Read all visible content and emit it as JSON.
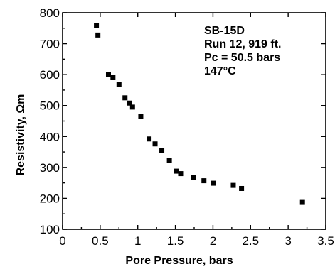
{
  "chart_data": {
    "type": "scatter",
    "xlabel": "Pore Pressure, bars",
    "ylabel": "Resistivity, Ωm",
    "xlim": [
      0,
      3.5
    ],
    "ylim": [
      100,
      800
    ],
    "xticks": [
      0,
      0.5,
      1,
      1.5,
      2,
      2.5,
      3,
      3.5
    ],
    "yticks": [
      100,
      200,
      300,
      400,
      500,
      600,
      700,
      800
    ],
    "xtick_labels": [
      "0",
      "0.5",
      "1",
      "1.5",
      "2",
      "2.5",
      "3",
      "3.5"
    ],
    "ytick_labels": [
      "100",
      "200",
      "300",
      "400",
      "500",
      "600",
      "700",
      "800"
    ],
    "grid": false,
    "annotations": [
      "SB-15D",
      "Run 12, 919 ft.",
      "Pc = 50.5 bars",
      "147°C"
    ],
    "series": [
      {
        "marker": "square",
        "color": "#000000",
        "points": [
          {
            "x": 0.45,
            "y": 758
          },
          {
            "x": 0.47,
            "y": 728
          },
          {
            "x": 0.61,
            "y": 600
          },
          {
            "x": 0.67,
            "y": 590
          },
          {
            "x": 0.75,
            "y": 568
          },
          {
            "x": 0.83,
            "y": 525
          },
          {
            "x": 0.89,
            "y": 508
          },
          {
            "x": 0.93,
            "y": 495
          },
          {
            "x": 1.04,
            "y": 465
          },
          {
            "x": 1.15,
            "y": 392
          },
          {
            "x": 1.23,
            "y": 376
          },
          {
            "x": 1.32,
            "y": 355
          },
          {
            "x": 1.42,
            "y": 322
          },
          {
            "x": 1.51,
            "y": 288
          },
          {
            "x": 1.57,
            "y": 280
          },
          {
            "x": 1.74,
            "y": 268
          },
          {
            "x": 1.88,
            "y": 257
          },
          {
            "x": 2.01,
            "y": 249
          },
          {
            "x": 2.27,
            "y": 242
          },
          {
            "x": 2.38,
            "y": 232
          },
          {
            "x": 3.19,
            "y": 187
          }
        ]
      }
    ]
  }
}
